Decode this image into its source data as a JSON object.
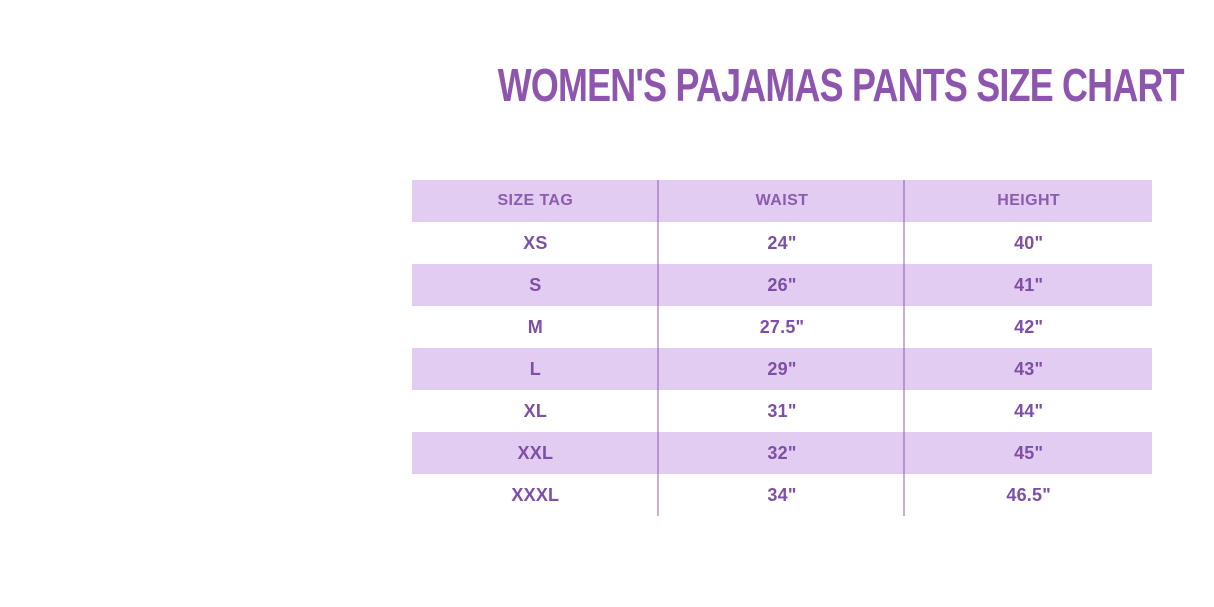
{
  "title": "WOMEN'S PAJAMAS PANTS SIZE CHART",
  "table": {
    "columns": [
      "SIZE TAG",
      "WAIST",
      "HEIGHT"
    ],
    "rows": [
      {
        "size": "XS",
        "waist": "24\"",
        "height": "40\""
      },
      {
        "size": "S",
        "waist": "26\"",
        "height": "41\""
      },
      {
        "size": "M",
        "waist": "27.5\"",
        "height": "42\""
      },
      {
        "size": "L",
        "waist": "29\"",
        "height": "43\""
      },
      {
        "size": "XL",
        "waist": "31\"",
        "height": "44\""
      },
      {
        "size": "XXL",
        "waist": "32\"",
        "height": "45\""
      },
      {
        "size": "XXXL",
        "waist": "34\"",
        "height": "46.5\""
      }
    ]
  },
  "colors": {
    "title_purple": "#8d55ae",
    "cell_text_purple": "#7d4fa6",
    "header_text_purple": "#8a5cae",
    "row_lavender": "#e2ccf2",
    "row_white": "#ffffff",
    "column_divider_purple": "#b48cd2",
    "page_background": "#ffffff"
  },
  "chart_data": {
    "type": "table",
    "title": "WOMEN'S PAJAMAS PANTS SIZE CHART",
    "columns": [
      "SIZE TAG",
      "WAIST",
      "HEIGHT"
    ],
    "rows": [
      [
        "XS",
        "24\"",
        "40\""
      ],
      [
        "S",
        "26\"",
        "41\""
      ],
      [
        "M",
        "27.5\"",
        "42\""
      ],
      [
        "L",
        "29\"",
        "43\""
      ],
      [
        "XL",
        "31\"",
        "44\""
      ],
      [
        "XXL",
        "32\"",
        "45\""
      ],
      [
        "XXXL",
        "34\"",
        "46.5\""
      ]
    ],
    "waist_inches": [
      24,
      26,
      27.5,
      29,
      31,
      32,
      34
    ],
    "height_inches": [
      40,
      41,
      42,
      43,
      44,
      45,
      46.5
    ],
    "layout_hints": {
      "header_background": "lavender",
      "row_striping": "header and odd data rows lavender, even data rows white",
      "column_dividers": "thin purple vertical lines full table height",
      "horizontal_borders": false
    }
  }
}
